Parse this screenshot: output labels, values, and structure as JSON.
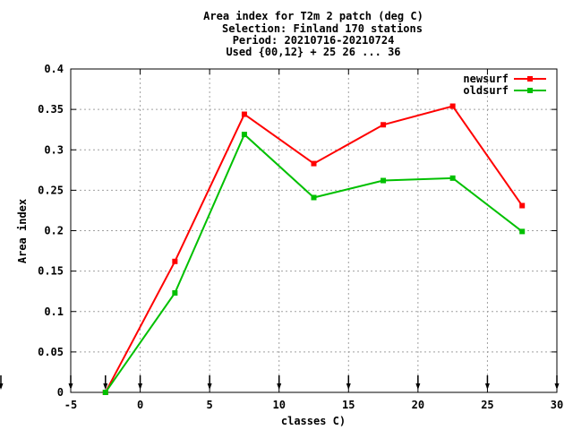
{
  "chart_data": {
    "type": "line",
    "title_lines": [
      "Area index  for T2m 2 patch (deg C)",
      "Selection: Finland    170 stations",
      "Period: 20210716-20210724",
      "Used {00,12} + 25 26 ... 36"
    ],
    "xlabel": "classes C)",
    "ylabel": "Area index",
    "xlim": [
      -5,
      30
    ],
    "ylim": [
      0,
      0.4
    ],
    "x_ticks": [
      -5,
      0,
      5,
      10,
      15,
      20,
      25,
      30
    ],
    "y_ticks": [
      0,
      0.05,
      0.1,
      0.15,
      0.2,
      0.25,
      0.3,
      0.35,
      0.4
    ],
    "x_tick_labels": [
      "-5",
      "0",
      "5",
      "10",
      "15",
      "20",
      "25",
      "30"
    ],
    "y_tick_labels": [
      "0",
      "0.05",
      "0.1",
      "0.15",
      "0.2",
      "0.25",
      "0.3",
      "0.35",
      "0.4"
    ],
    "grid": true,
    "legend_position": "top-right",
    "arrow_markers_x": [
      -5,
      -2.5,
      0,
      5,
      10,
      15,
      20,
      25,
      30
    ],
    "series": [
      {
        "name": "newsurf",
        "color": "#ff0000",
        "x": [
          -2.5,
          2.5,
          7.5,
          12.5,
          17.5,
          22.5,
          27.5
        ],
        "y": [
          0.0,
          0.162,
          0.344,
          0.283,
          0.331,
          0.354,
          0.231
        ]
      },
      {
        "name": "oldsurf",
        "color": "#00c000",
        "x": [
          -2.5,
          2.5,
          7.5,
          12.5,
          17.5,
          22.5,
          27.5
        ],
        "y": [
          0.0,
          0.123,
          0.319,
          0.241,
          0.262,
          0.265,
          0.199
        ]
      }
    ]
  }
}
